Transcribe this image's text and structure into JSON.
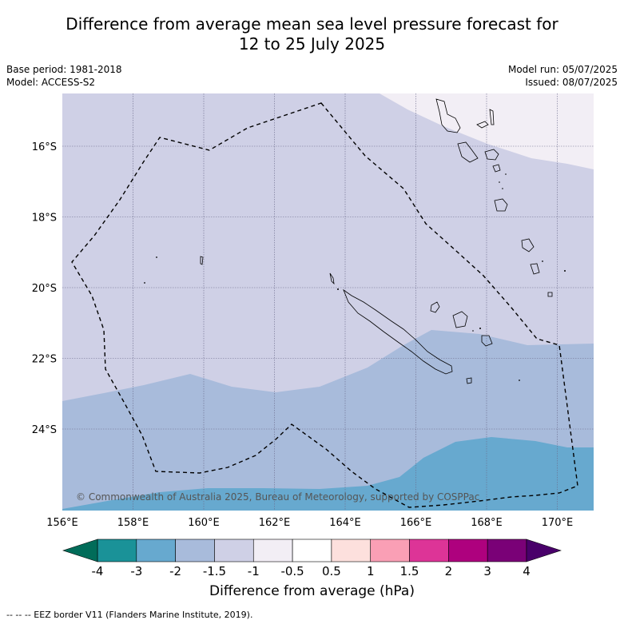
{
  "header": {
    "title_line1": "Difference from average mean sea level pressure forecast for",
    "title_line2": "12 to 25 July 2025",
    "base_period": "Base period: 1981-2018",
    "model": "Model: ACCESS-S2",
    "model_run": "Model run: 05/07/2025",
    "issued": "Issued: 08/07/2025"
  },
  "map": {
    "lon_range": [
      156,
      171
    ],
    "lat_range": [
      -14.5,
      -26
    ],
    "lon_ticks": [
      "156°E",
      "158°E",
      "160°E",
      "162°E",
      "164°E",
      "166°E",
      "168°E",
      "170°E"
    ],
    "lat_ticks": [
      "16°S",
      "18°S",
      "20°S",
      "22°S",
      "24°S"
    ],
    "copyright": "© Commonwealth of Australia 2025, Bureau of Meteorology, supported by COSPPac",
    "colors": {
      "lt_m2": "#a8bbdb",
      "lt_m1_5": "#cfd0e6",
      "lt_m1": "#f2eef5",
      "lt_m3": "#67a9cf"
    }
  },
  "colorbar": {
    "title": "Difference from average (hPa)",
    "labels": [
      "-4",
      "-3",
      "-2",
      "-1.5",
      "-1",
      "-0.5",
      "0.5",
      "1",
      "1.5",
      "2",
      "3",
      "4"
    ],
    "colors": [
      "#1a9298",
      "#67a9cf",
      "#a8bbdb",
      "#cfd0e6",
      "#f2eef5",
      "#ffffff",
      "#fde0dd",
      "#fa9fb5",
      "#dd3497",
      "#ae017e",
      "#7a0177"
    ],
    "low_extend_color": "#016c59",
    "high_extend_color": "#49006a"
  },
  "footnote": "--  --  -- EEZ border V11 (Flanders Marine Institute, 2019)."
}
